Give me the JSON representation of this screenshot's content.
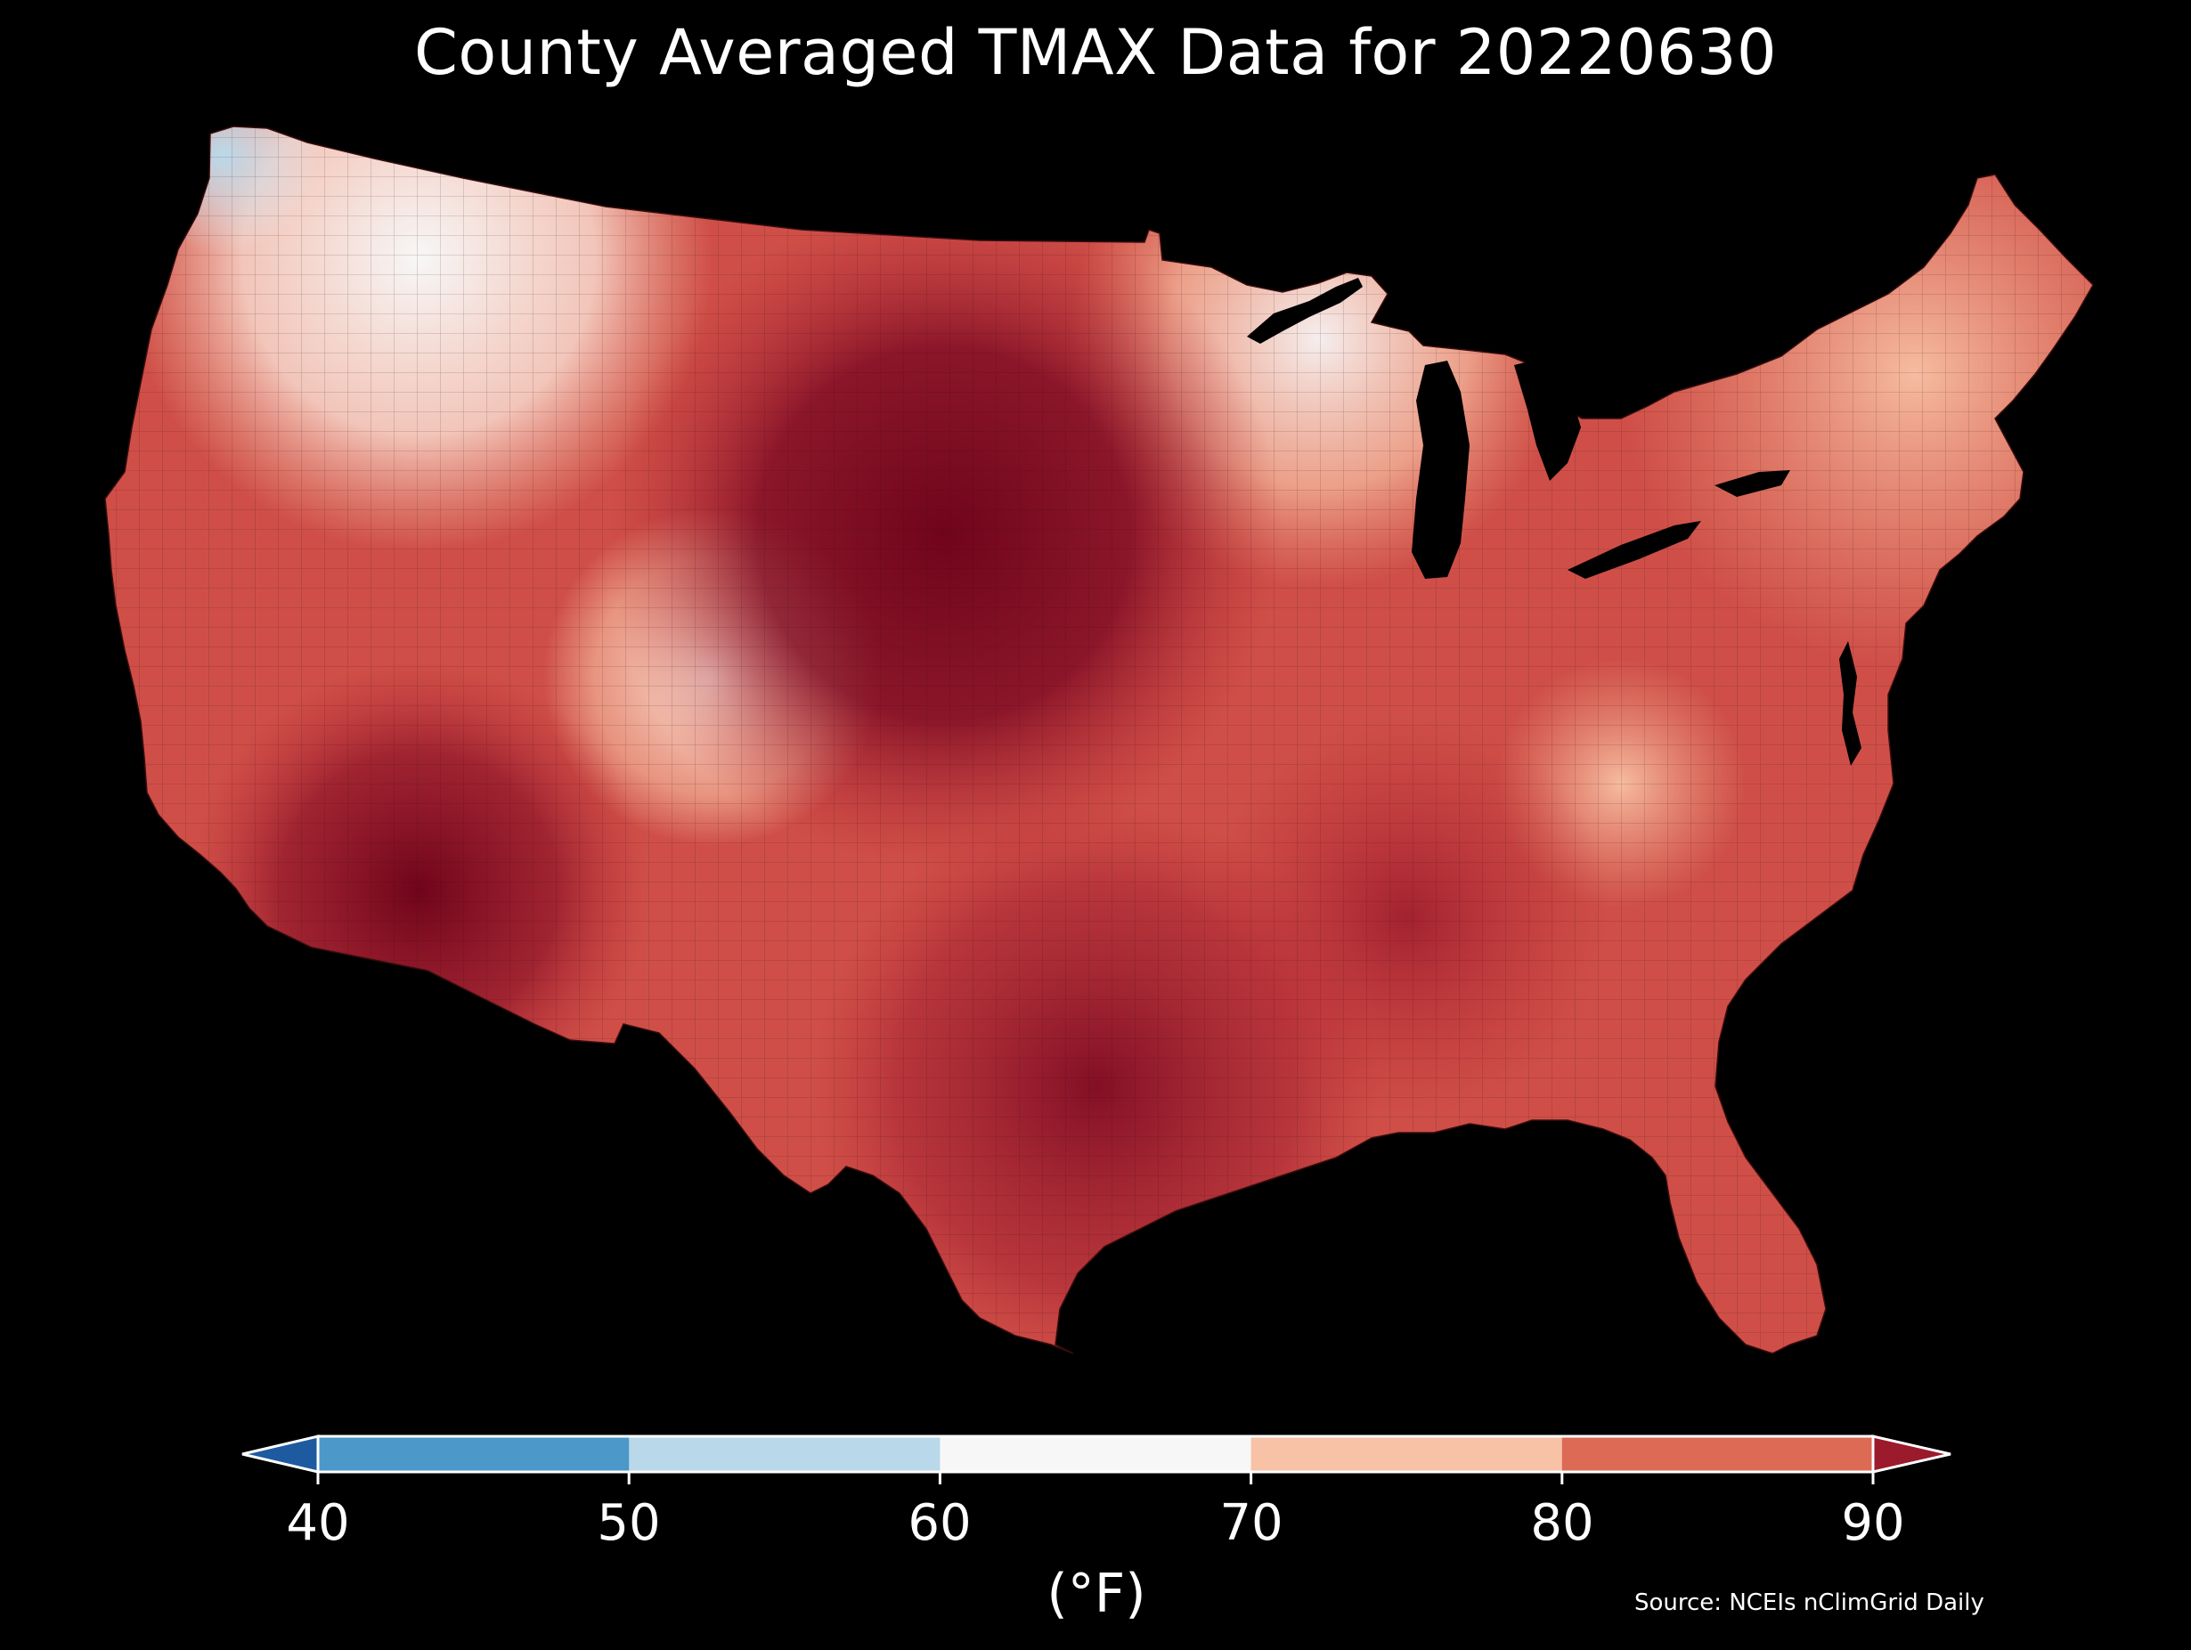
{
  "title": "County Averaged TMAX Data for 20220630",
  "colorbar": {
    "ticks": [
      "40",
      "50",
      "60",
      "70",
      "80",
      "90"
    ],
    "unit": "(°F)",
    "bins": [
      {
        "from": "<40",
        "color": "#1e5aa0"
      },
      {
        "from": "40",
        "to": "50",
        "color": "#4b98c9"
      },
      {
        "from": "50",
        "to": "60",
        "color": "#b9d9ea"
      },
      {
        "from": "60",
        "to": "70",
        "color": "#f7f7f7"
      },
      {
        "from": "70",
        "to": "80",
        "color": "#f8c2a6"
      },
      {
        "from": "80",
        "to": "90",
        "color": "#dc6a55"
      },
      {
        "from": ">90",
        "color": "#9b1a2c"
      }
    ],
    "extend": "both"
  },
  "source": "Source: NCEIs nClimGrid Daily",
  "colors": {
    "background": "#000000",
    "cool_blue": "#b9d9ea",
    "neutral": "#f7f7f7",
    "warm_light": "#f8c2a6",
    "warm_mid": "#dc6a55",
    "hot": "#b82a35",
    "hottest": "#6b0019"
  }
}
